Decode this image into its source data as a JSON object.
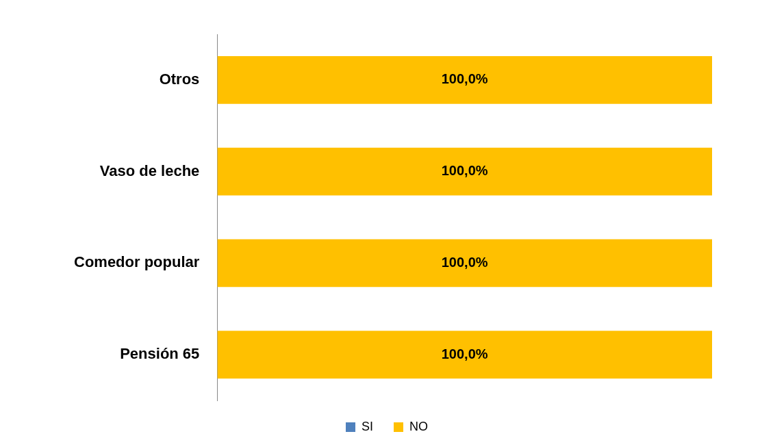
{
  "chart_data": {
    "type": "bar",
    "orientation": "horizontal",
    "stacked": true,
    "categories": [
      "Otros",
      "Vaso de leche",
      "Comedor popular",
      "Pensión 65"
    ],
    "series": [
      {
        "name": "SI",
        "color": "#4f81bd",
        "values": [
          0,
          0,
          0,
          0
        ]
      },
      {
        "name": "NO",
        "color": "#ffc000",
        "values": [
          100,
          100,
          100,
          100
        ],
        "value_labels": [
          "100,0%",
          "100,0%",
          "100,0%",
          "100,0%"
        ]
      }
    ],
    "legend": "bottom"
  }
}
